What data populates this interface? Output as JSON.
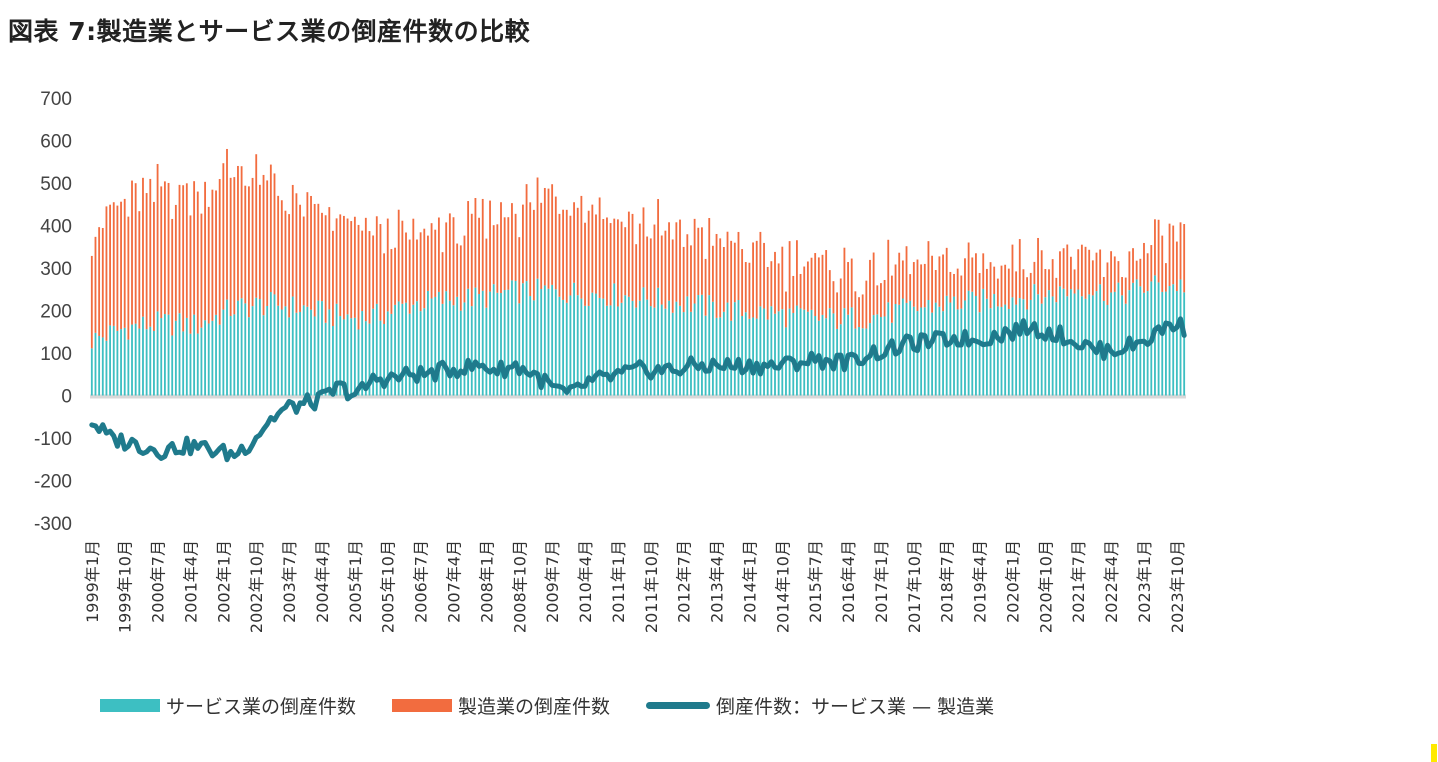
{
  "title": "図表 7:製造業とサービス業の倒産件数の比較",
  "colors": {
    "services": "#3dbfc2",
    "manufacturing": "#f26c3f",
    "difference": "#1f7a8c",
    "zero_band": "#d9d9d9"
  },
  "chart_data": {
    "type": "bar",
    "stacked": true,
    "title": "図表 7:製造業とサービス業の倒産件数の比較",
    "xlabel": "",
    "ylabel": "",
    "ylim": [
      -300,
      700
    ],
    "yticks": [
      700,
      600,
      500,
      400,
      300,
      200,
      100,
      0,
      -100,
      -200,
      -300
    ],
    "x_range": [
      "1999年1月",
      "2023年12月"
    ],
    "x_ticks": [
      "1999年1月",
      "1999年10月",
      "2000年7月",
      "2001年4月",
      "2002年1月",
      "2002年10月",
      "2003年7月",
      "2004年4月",
      "2005年1月",
      "2005年10月",
      "2006年7月",
      "2007年4月",
      "2008年1月",
      "2008年10月",
      "2009年7月",
      "2010年4月",
      "2011年1月",
      "2011年10月",
      "2012年7月",
      "2013年4月",
      "2014年1月",
      "2014年10月",
      "2015年7月",
      "2016年4月",
      "2017年1月",
      "2017年10月",
      "2018年7月",
      "2019年4月",
      "2020年1月",
      "2020年10月",
      "2021年7月",
      "2022年4月",
      "2023年1月",
      "2023年10月"
    ],
    "legend_position": "bottom",
    "series": [
      {
        "name": "サービス業の倒産件数",
        "kind": "bar",
        "anchors": [
          [
            0,
            130
          ],
          [
            12,
            160
          ],
          [
            24,
            170
          ],
          [
            36,
            165
          ],
          [
            48,
            205
          ],
          [
            60,
            215
          ],
          [
            72,
            205
          ],
          [
            84,
            185
          ],
          [
            96,
            185
          ],
          [
            108,
            215
          ],
          [
            120,
            225
          ],
          [
            132,
            230
          ],
          [
            144,
            245
          ],
          [
            156,
            245
          ],
          [
            168,
            240
          ],
          [
            180,
            235
          ],
          [
            192,
            225
          ],
          [
            204,
            215
          ],
          [
            216,
            200
          ],
          [
            228,
            195
          ],
          [
            240,
            185
          ],
          [
            252,
            180
          ],
          [
            264,
            185
          ],
          [
            276,
            200
          ],
          [
            288,
            215
          ],
          [
            300,
            220
          ],
          [
            312,
            230
          ],
          [
            324,
            235
          ],
          [
            336,
            255
          ],
          [
            348,
            235
          ],
          [
            360,
            260
          ],
          [
            371,
            260
          ]
        ]
      },
      {
        "name": "製造業の倒産件数",
        "kind": "bar",
        "anchors": [
          [
            0,
            260
          ],
          [
            12,
            300
          ],
          [
            24,
            310
          ],
          [
            36,
            310
          ],
          [
            48,
            330
          ],
          [
            60,
            280
          ],
          [
            72,
            235
          ],
          [
            84,
            220
          ],
          [
            96,
            200
          ],
          [
            108,
            160
          ],
          [
            120,
            165
          ],
          [
            132,
            175
          ],
          [
            144,
            190
          ],
          [
            156,
            230
          ],
          [
            168,
            225
          ],
          [
            180,
            185
          ],
          [
            192,
            170
          ],
          [
            204,
            165
          ],
          [
            216,
            160
          ],
          [
            228,
            135
          ],
          [
            240,
            125
          ],
          [
            252,
            115
          ],
          [
            264,
            105
          ],
          [
            276,
            100
          ],
          [
            288,
            95
          ],
          [
            300,
            85
          ],
          [
            312,
            100
          ],
          [
            324,
            95
          ],
          [
            336,
            80
          ],
          [
            348,
            65
          ],
          [
            360,
            95
          ],
          [
            371,
            135
          ]
        ]
      },
      {
        "name": "倒産件数：サービス業 — 製造業",
        "kind": "line",
        "anchors": [
          [
            0,
            -60
          ],
          [
            6,
            -100
          ],
          [
            12,
            -110
          ],
          [
            18,
            -120
          ],
          [
            24,
            -130
          ],
          [
            30,
            -120
          ],
          [
            36,
            -120
          ],
          [
            42,
            -130
          ],
          [
            48,
            -140
          ],
          [
            54,
            -110
          ],
          [
            60,
            -60
          ],
          [
            66,
            -30
          ],
          [
            72,
            -20
          ],
          [
            78,
            -10
          ],
          [
            84,
            20
          ],
          [
            90,
            0
          ],
          [
            96,
            40
          ],
          [
            102,
            40
          ],
          [
            108,
            50
          ],
          [
            114,
            50
          ],
          [
            120,
            60
          ],
          [
            126,
            65
          ],
          [
            132,
            70
          ],
          [
            138,
            60
          ],
          [
            144,
            70
          ],
          [
            150,
            50
          ],
          [
            156,
            20
          ],
          [
            162,
            0
          ],
          [
            168,
            30
          ],
          [
            174,
            40
          ],
          [
            180,
            50
          ],
          [
            186,
            60
          ],
          [
            192,
            60
          ],
          [
            198,
            60
          ],
          [
            204,
            70
          ],
          [
            210,
            70
          ],
          [
            216,
            70
          ],
          [
            222,
            70
          ],
          [
            228,
            70
          ],
          [
            234,
            70
          ],
          [
            240,
            80
          ],
          [
            246,
            85
          ],
          [
            252,
            80
          ],
          [
            258,
            80
          ],
          [
            264,
            100
          ],
          [
            270,
            105
          ],
          [
            276,
            120
          ],
          [
            282,
            125
          ],
          [
            288,
            130
          ],
          [
            294,
            135
          ],
          [
            300,
            130
          ],
          [
            306,
            140
          ],
          [
            312,
            150
          ],
          [
            318,
            160
          ],
          [
            324,
            150
          ],
          [
            330,
            140
          ],
          [
            336,
            120
          ],
          [
            342,
            105
          ],
          [
            348,
            110
          ],
          [
            354,
            120
          ],
          [
            360,
            140
          ],
          [
            366,
            170
          ],
          [
            371,
            160
          ]
        ]
      }
    ]
  },
  "legend": {
    "services": "サービス業の倒産件数",
    "manufacturing": "製造業の倒産件数",
    "difference": "倒産件数：サービス業 — 製造業"
  }
}
